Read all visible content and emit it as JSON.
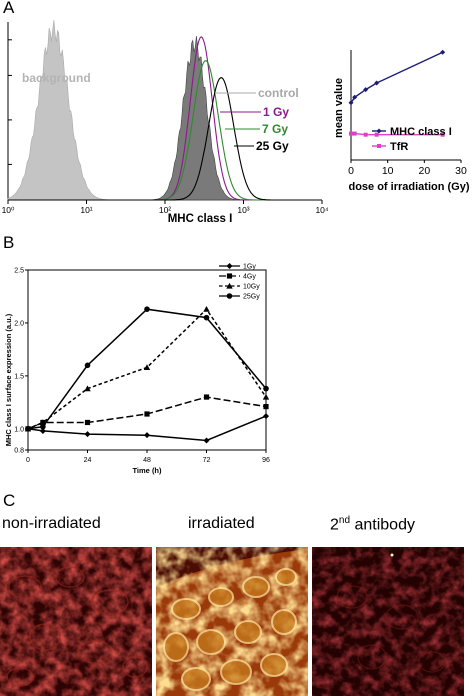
{
  "figure": {
    "panel_a_label": "A",
    "panel_b_label": "B",
    "panel_c_label": "C"
  },
  "chart_data": [
    {
      "type": "area",
      "panel": "A",
      "xlabel": "MHC class I",
      "x_scale": "log",
      "xlim": [
        1,
        10000
      ],
      "x_ticks": [
        "10⁰",
        "10¹",
        "10²",
        "10³",
        "10⁴"
      ],
      "series": [
        {
          "name": "background",
          "style": "filled",
          "color": "#c4c4c4",
          "peak_x": 3.8,
          "sigma_log": 0.19,
          "peak_height": 1.0
        },
        {
          "name": "control",
          "style": "filled",
          "color": "#6f6f6f",
          "peak_x": 240,
          "sigma_log": 0.15,
          "peak_height": 0.92
        },
        {
          "name": "1 Gy",
          "style": "line",
          "color": "#8c1a8c",
          "peak_x": 290,
          "sigma_log": 0.14,
          "peak_height": 0.96
        },
        {
          "name": "7 Gy",
          "style": "line",
          "color": "#2f8a2f",
          "peak_x": 330,
          "sigma_log": 0.16,
          "peak_height": 0.82
        },
        {
          "name": "25 Gy",
          "style": "line",
          "color": "#000000",
          "peak_x": 520,
          "sigma_log": 0.16,
          "peak_height": 0.72
        }
      ],
      "labels": [
        {
          "text": "background",
          "color": "#b4b4b4"
        },
        {
          "text": "control",
          "color": "#a8a8a8"
        },
        {
          "text": "1 Gy",
          "color": "#8c1a8c"
        },
        {
          "text": "7 Gy",
          "color": "#2f8a2f"
        },
        {
          "text": "25 Gy",
          "color": "#000000"
        }
      ]
    },
    {
      "type": "line",
      "panel": "A-inset",
      "xlabel": "dose of irradiation (Gy)",
      "ylabel": "mean value",
      "xlim": [
        0,
        30
      ],
      "x_ticks": [
        "0",
        "10",
        "20",
        "30"
      ],
      "series": [
        {
          "name": "MHC class I",
          "color": "#1c1c78",
          "marker": "diamond",
          "x": [
            0,
            1,
            4,
            7,
            25
          ],
          "y": [
            0.52,
            0.57,
            0.64,
            0.7,
            0.98
          ]
        },
        {
          "name": "TfR",
          "color": "#e040c8",
          "marker": "square",
          "x": [
            0,
            1,
            4,
            7,
            25
          ],
          "y": [
            0.24,
            0.24,
            0.23,
            0.23,
            0.23
          ]
        }
      ]
    },
    {
      "type": "line",
      "panel": "B",
      "xlabel": "Time (h)",
      "ylabel": "MHC class I surface expression (a.u.)",
      "xlim": [
        0,
        96
      ],
      "ylim": [
        0.8,
        2.5
      ],
      "x_ticks": [
        0,
        24,
        48,
        72,
        96
      ],
      "y_ticks": [
        "0.8",
        "1.0",
        "1.5",
        "2.0",
        "2.5"
      ],
      "legend_position": "top-right",
      "series": [
        {
          "name": "1Gy",
          "marker": "diamond",
          "dash": "solid",
          "x": [
            0,
            6,
            24,
            48,
            72,
            96
          ],
          "y": [
            1.0,
            0.98,
            0.95,
            0.94,
            0.89,
            1.12
          ]
        },
        {
          "name": "4Gy",
          "marker": "square",
          "dash": "long-dash",
          "x": [
            0,
            6,
            24,
            48,
            72,
            96
          ],
          "y": [
            1.0,
            1.06,
            1.06,
            1.14,
            1.3,
            1.21
          ]
        },
        {
          "name": "10Gy",
          "marker": "triangle",
          "dash": "short-dash",
          "x": [
            0,
            6,
            24,
            48,
            72,
            96
          ],
          "y": [
            1.0,
            1.06,
            1.38,
            1.58,
            2.13,
            1.3
          ]
        },
        {
          "name": "25Gy",
          "marker": "circle",
          "dash": "solid",
          "x": [
            0,
            6,
            24,
            48,
            72,
            96
          ],
          "y": [
            1.0,
            1.02,
            1.6,
            2.13,
            2.05,
            1.38
          ]
        }
      ]
    }
  ],
  "micrographs": [
    {
      "label_main": "non-irradiated",
      "label_sup": "",
      "label_rest": "",
      "intensity": "low"
    },
    {
      "label_main": "irradiated",
      "label_sup": "",
      "label_rest": "",
      "intensity": "high"
    },
    {
      "label_main": "2",
      "label_sup": "nd",
      "label_rest": " antibody",
      "intensity": "very-low"
    }
  ]
}
